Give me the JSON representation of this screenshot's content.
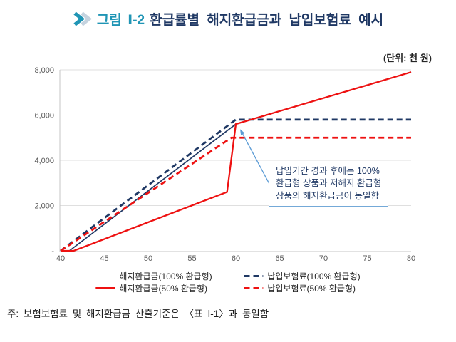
{
  "header": {
    "figure_label": "그림 Ⅰ-2",
    "title": "환급률별 해지환급금과 납입보험료 예시",
    "label_color": "#2095B5",
    "title_color": "#1F3864"
  },
  "unit_label": "(단위: 천 원)",
  "note": "주: 보험보험료 및 해지환급금 산출기준은 〈표 Ⅰ-1〉과 동일함",
  "colors": {
    "teal_accent": "#2095B5",
    "chevron_light": "#C5D3DF",
    "navy_series": "#1F3864",
    "red_series": "#EE1111",
    "arrow_blue": "#5B9BD5",
    "callout_border": "#74A9D8",
    "gridline": "#DFDFDF",
    "axis_line": "#C6C6C6",
    "tick_text": "#595959"
  },
  "chart_data": {
    "type": "line",
    "title": "환급률별 해지환급금과 납입보험료 예시 (단위: 천 원)",
    "xlabel": "",
    "ylabel": "",
    "xlim": [
      40,
      80
    ],
    "ylim": [
      0,
      8000
    ],
    "grid": true,
    "legend_position": "bottom",
    "x_ticks": [
      40,
      45,
      50,
      55,
      60,
      65,
      70,
      75,
      80
    ],
    "y_ticks": [
      {
        "label": "-",
        "value": 0
      },
      {
        "label": "2,000",
        "value": 2000
      },
      {
        "label": "4,000",
        "value": 4000
      },
      {
        "label": "6,000",
        "value": 6000
      },
      {
        "label": "8,000",
        "value": 8000
      }
    ],
    "series": [
      {
        "name": "해지환급금(100% 환급형)",
        "style": "solid",
        "color": "#1F3864",
        "width": 1.7,
        "points": [
          [
            40,
            0
          ],
          [
            41,
            0
          ],
          [
            60,
            5600
          ],
          [
            80,
            7900
          ]
        ]
      },
      {
        "name": "납입보험료(100% 환급형)",
        "style": "dashed",
        "color": "#1F3864",
        "width": 2.8,
        "points": [
          [
            40,
            0
          ],
          [
            60,
            5800
          ],
          [
            80,
            5800
          ]
        ]
      },
      {
        "name": "납입보험료(50% 환급형)",
        "style": "dashed",
        "color": "#EE1111",
        "width": 2.8,
        "points": [
          [
            40,
            0
          ],
          [
            59.5,
            5000
          ],
          [
            80,
            5000
          ]
        ]
      },
      {
        "name": "해지환급금(50% 환급형)",
        "style": "solid",
        "color": "#EE1111",
        "width": 2.3,
        "points": [
          [
            40,
            0
          ],
          [
            41.5,
            0
          ],
          [
            59,
            2600
          ],
          [
            60,
            5600
          ],
          [
            80,
            7900
          ]
        ]
      }
    ],
    "annotation": {
      "lines": [
        "납입기간 경과 후에는 100%",
        "환급형 상품과 저해지 환급형",
        "상품의 해지환급금이 동일함"
      ],
      "target": {
        "x": 60,
        "y": 5600
      },
      "arrow_color": "#5B9BD5",
      "border_color": "#74A9D8",
      "text_color": "#1F3864"
    }
  },
  "legend": {
    "rows": [
      [
        {
          "label": "해지환급금(100% 환급형)",
          "style": "solid",
          "color": "#1F3864"
        },
        {
          "label": "납입보험료(100% 환급형)",
          "style": "dashed",
          "color": "#1F3864"
        }
      ],
      [
        {
          "label": "해지환급금(50% 환급형)",
          "style": "solid",
          "color": "#EE1111"
        },
        {
          "label": "납입보험료(50% 환급형)",
          "style": "dashed",
          "color": "#EE1111"
        }
      ]
    ]
  }
}
